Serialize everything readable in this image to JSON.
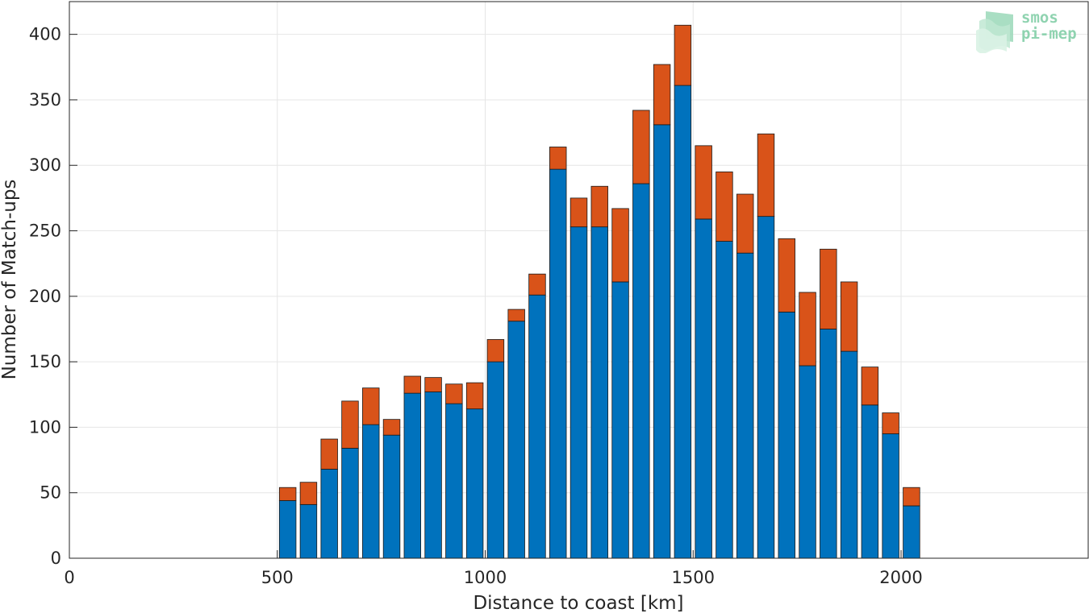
{
  "chart_data": {
    "type": "bar",
    "stacked": true,
    "xlabel": "Distance to coast [km]",
    "ylabel": "Number of Match-ups",
    "xlim": [
      0,
      2450
    ],
    "ylim": [
      0,
      425
    ],
    "xticks": [
      0,
      500,
      1000,
      1500,
      2000
    ],
    "yticks": [
      0,
      50,
      100,
      150,
      200,
      250,
      300,
      350,
      400
    ],
    "grid": true,
    "x": [
      525,
      575,
      625,
      675,
      725,
      775,
      825,
      875,
      925,
      975,
      1025,
      1075,
      1125,
      1175,
      1225,
      1275,
      1325,
      1375,
      1425,
      1475,
      1525,
      1575,
      1625,
      1675,
      1725,
      1775,
      1825,
      1875,
      1925,
      1975,
      2025
    ],
    "series": [
      {
        "color": "#0072bd",
        "values": [
          44,
          41,
          68,
          84,
          102,
          94,
          126,
          127,
          118,
          114,
          150,
          181,
          201,
          297,
          253,
          253,
          211,
          286,
          331,
          361,
          259,
          242,
          233,
          261,
          188,
          147,
          175,
          158,
          117,
          95,
          40
        ]
      },
      {
        "color": "#d95319",
        "values": [
          10,
          17,
          23,
          36,
          28,
          12,
          13,
          11,
          15,
          20,
          17,
          9,
          16,
          17,
          22,
          31,
          56,
          56,
          46,
          46,
          56,
          53,
          45,
          63,
          56,
          56,
          61,
          53,
          29,
          16,
          14
        ]
      }
    ]
  },
  "logo": {
    "line1": "smos",
    "line2": "pi-mep",
    "colors": [
      "#8fd3b0",
      "#b8e6cc",
      "#d3f0e0"
    ]
  }
}
